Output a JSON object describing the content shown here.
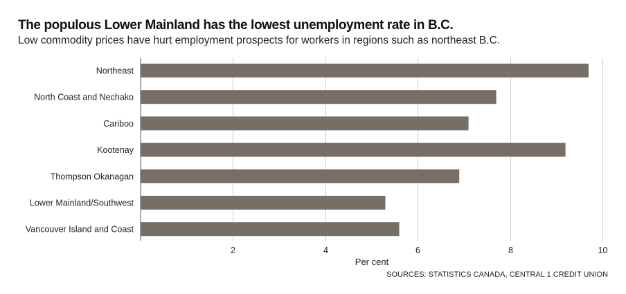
{
  "chart_data": {
    "type": "bar",
    "orientation": "horizontal",
    "title": "The populous Lower Mainland has the lowest unemployment rate in B.C.",
    "subtitle": "Low commodity prices have hurt employment prospects for workers in regions such as northeast B.C.",
    "categories": [
      "Northeast",
      "North Coast and Nechako",
      "Cariboo",
      "Kootenay",
      "Thompson Okanagan",
      "Lower Mainland/Southwest",
      "Vancouver Island and Coast"
    ],
    "values": [
      9.7,
      7.7,
      7.1,
      9.2,
      6.9,
      5.3,
      5.6
    ],
    "xlabel": "Per cent",
    "ylabel": "",
    "xlim": [
      0,
      10
    ],
    "xticks": [
      2,
      4,
      6,
      8,
      10
    ],
    "xtick_labels": [
      "2",
      "4",
      "6",
      "8",
      "10"
    ],
    "grid": "vertical",
    "source": "SOURCES: STATISTICS CANADA, CENTRAL 1 CREDIT UNION",
    "colors": {
      "bar": "#776e66",
      "grid": "#c8c8c8",
      "axis": "#555555"
    }
  }
}
